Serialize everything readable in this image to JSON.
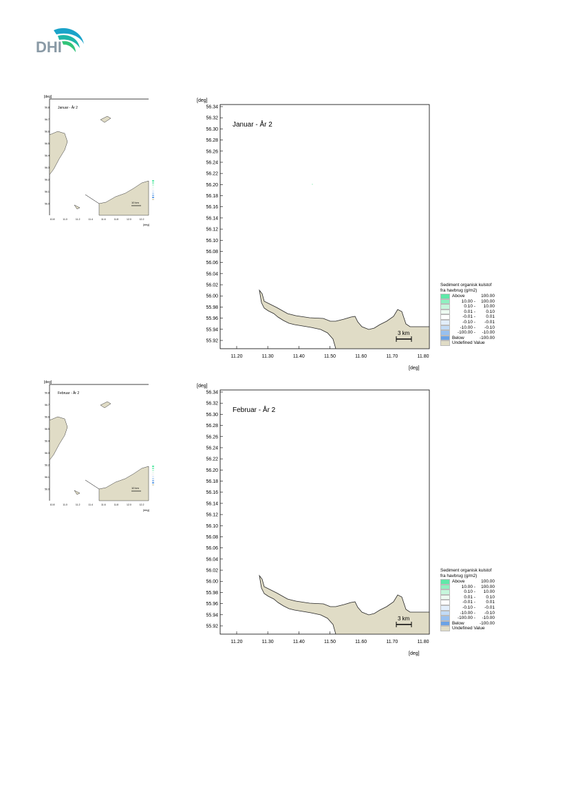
{
  "logo": {
    "text": "DHI",
    "alt": "DHI logo"
  },
  "land_color": "#e0dcc6",
  "maps": [
    {
      "title": "Januar - År 2",
      "thumbnail_title": "Januar - År 2",
      "axis_unit": "[deg]",
      "y_ticks": [
        "56.34",
        "56.32",
        "56.30",
        "56.28",
        "56.26",
        "56.24",
        "56.22",
        "56.20",
        "56.18",
        "56.16",
        "56.14",
        "56.12",
        "56.10",
        "56.08",
        "56.06",
        "56.04",
        "56.02",
        "56.00",
        "55.98",
        "55.96",
        "55.94",
        "55.92"
      ],
      "x_ticks": [
        "11.20",
        "11.30",
        "11.40",
        "11.50",
        "11.60",
        "11.70",
        "11.80"
      ],
      "scale_bar": "3 km",
      "thumb_y_ticks": [
        "56.8",
        "56.7",
        "56.6",
        "56.5",
        "56.4",
        "56.3",
        "56.2",
        "56.1",
        "56.0"
      ],
      "thumb_x_ticks": [
        "10.8",
        "11.0",
        "11.2",
        "11.4",
        "11.6",
        "11.8",
        "12.0",
        "12.2"
      ],
      "thumb_scale": "10 km"
    },
    {
      "title": "Februar - År 2",
      "thumbnail_title": "Februar - År 2",
      "axis_unit": "[deg]",
      "y_ticks": [
        "56.34",
        "56.32",
        "56.30",
        "56.28",
        "56.26",
        "56.24",
        "56.22",
        "56.20",
        "56.18",
        "56.16",
        "56.14",
        "56.12",
        "56.10",
        "56.08",
        "56.06",
        "56.04",
        "56.02",
        "56.00",
        "55.98",
        "55.96",
        "55.94",
        "55.92"
      ],
      "x_ticks": [
        "11.20",
        "11.30",
        "11.40",
        "11.50",
        "11.60",
        "11.70",
        "11.80"
      ],
      "scale_bar": "3 km",
      "thumb_y_ticks": [
        "56.8",
        "56.7",
        "56.6",
        "56.5",
        "56.4",
        "56.3",
        "56.2",
        "56.1",
        "56.0"
      ],
      "thumb_x_ticks": [
        "10.8",
        "11.0",
        "11.2",
        "11.4",
        "11.6",
        "11.8",
        "12.0",
        "12.2"
      ],
      "thumb_scale": "10 km"
    }
  ],
  "legend": {
    "title_line1": "Sediment organisk kulstof",
    "title_line2": "fra havbrug (g/m2)",
    "items": [
      {
        "label": "Above",
        "value": "100.00",
        "color": "#5fe8a8"
      },
      {
        "label": "10.00 -",
        "value": "100.00",
        "color": "#8ff0c0"
      },
      {
        "label": "0.10 -",
        "value": "10.00",
        "color": "#c6f6dc"
      },
      {
        "label": "0.01 -",
        "value": "0.10",
        "color": "#eefbf2"
      },
      {
        "label": "-0.01 -",
        "value": "0.01",
        "color": "#ffffff"
      },
      {
        "label": "-0.10 -",
        "value": "-0.01",
        "color": "#e2eefb"
      },
      {
        "label": "-10.00 -",
        "value": "-0.10",
        "color": "#c2dbf6"
      },
      {
        "label": "-100.00 -",
        "value": "-10.00",
        "color": "#98c0ef"
      },
      {
        "label": "Below",
        "value": "-100.00",
        "color": "#6aa2e6"
      },
      {
        "label": "Undefined Value",
        "value": "",
        "color": "#e0dcc6"
      }
    ]
  }
}
